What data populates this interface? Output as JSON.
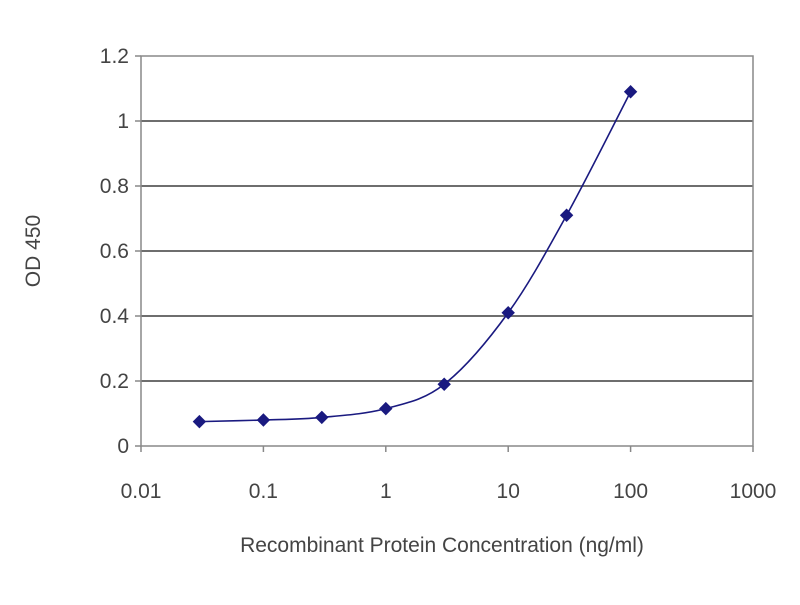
{
  "chart_data": {
    "type": "line",
    "title": "",
    "xlabel": "Recombinant Protein Concentration (ng/ml)",
    "ylabel": "OD 450",
    "x_scale": "log",
    "xlim": [
      0.01,
      1000
    ],
    "ylim": [
      0,
      1.2
    ],
    "x_ticks": [
      "0.01",
      "0.1",
      "1",
      "10",
      "100",
      "1000"
    ],
    "y_ticks": [
      "0",
      "0.2",
      "0.4",
      "0.6",
      "0.8",
      "1",
      "1.2"
    ],
    "grid": "horizontal",
    "legend": "none",
    "series": [
      {
        "color": "#1a1a80",
        "marker": "diamond",
        "points": [
          {
            "x": 0.03,
            "y": 0.075
          },
          {
            "x": 0.1,
            "y": 0.08
          },
          {
            "x": 0.3,
            "y": 0.088
          },
          {
            "x": 1,
            "y": 0.115
          },
          {
            "x": 3,
            "y": 0.19
          },
          {
            "x": 10,
            "y": 0.41
          },
          {
            "x": 30,
            "y": 0.71
          },
          {
            "x": 100,
            "y": 1.09
          }
        ]
      }
    ]
  }
}
